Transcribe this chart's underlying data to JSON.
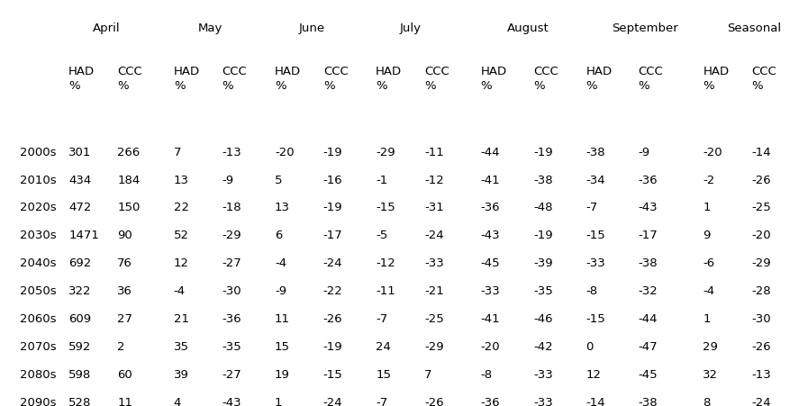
{
  "month_headers": [
    "April",
    "May",
    "June",
    "July",
    "August",
    "September",
    "Seasonal"
  ],
  "row_labels": [
    "2000s",
    "2010s",
    "2020s",
    "2030s",
    "2040s",
    "2050s",
    "2060s",
    "2070s",
    "2080s",
    "2090s"
  ],
  "table_data": [
    [
      301,
      266,
      7,
      -13,
      -20,
      -19,
      -29,
      -11,
      -44,
      -19,
      -38,
      -9,
      -20,
      -14
    ],
    [
      434,
      184,
      13,
      -9,
      5,
      -16,
      -1,
      -12,
      -41,
      -38,
      -34,
      -36,
      -2,
      -26
    ],
    [
      472,
      150,
      22,
      -18,
      13,
      -19,
      -15,
      -31,
      -36,
      -48,
      -7,
      -43,
      1,
      -25
    ],
    [
      1471,
      90,
      52,
      -29,
      6,
      -17,
      -5,
      -24,
      -43,
      -19,
      -15,
      -17,
      9,
      -20
    ],
    [
      692,
      76,
      12,
      -27,
      -4,
      -24,
      -12,
      -33,
      -45,
      -39,
      -33,
      -38,
      -6,
      -29
    ],
    [
      322,
      36,
      -4,
      -30,
      -9,
      -22,
      -11,
      -21,
      -33,
      -35,
      -8,
      -32,
      -4,
      -28
    ],
    [
      609,
      27,
      21,
      -36,
      11,
      -26,
      -7,
      -25,
      -41,
      -46,
      -15,
      -44,
      1,
      -30
    ],
    [
      592,
      2,
      35,
      -35,
      15,
      -19,
      24,
      -29,
      -20,
      -42,
      0,
      -47,
      29,
      -26
    ],
    [
      598,
      60,
      39,
      -27,
      19,
      -15,
      15,
      7,
      -8,
      -33,
      12,
      -45,
      32,
      -13
    ],
    [
      528,
      11,
      4,
      -43,
      1,
      -24,
      -7,
      -26,
      -36,
      -33,
      -14,
      -38,
      8,
      -24
    ]
  ],
  "bg_color": "#ffffff",
  "text_color": "#000000",
  "font_size": 9.5,
  "figwidth": 8.97,
  "figheight": 4.51,
  "dpi": 100
}
